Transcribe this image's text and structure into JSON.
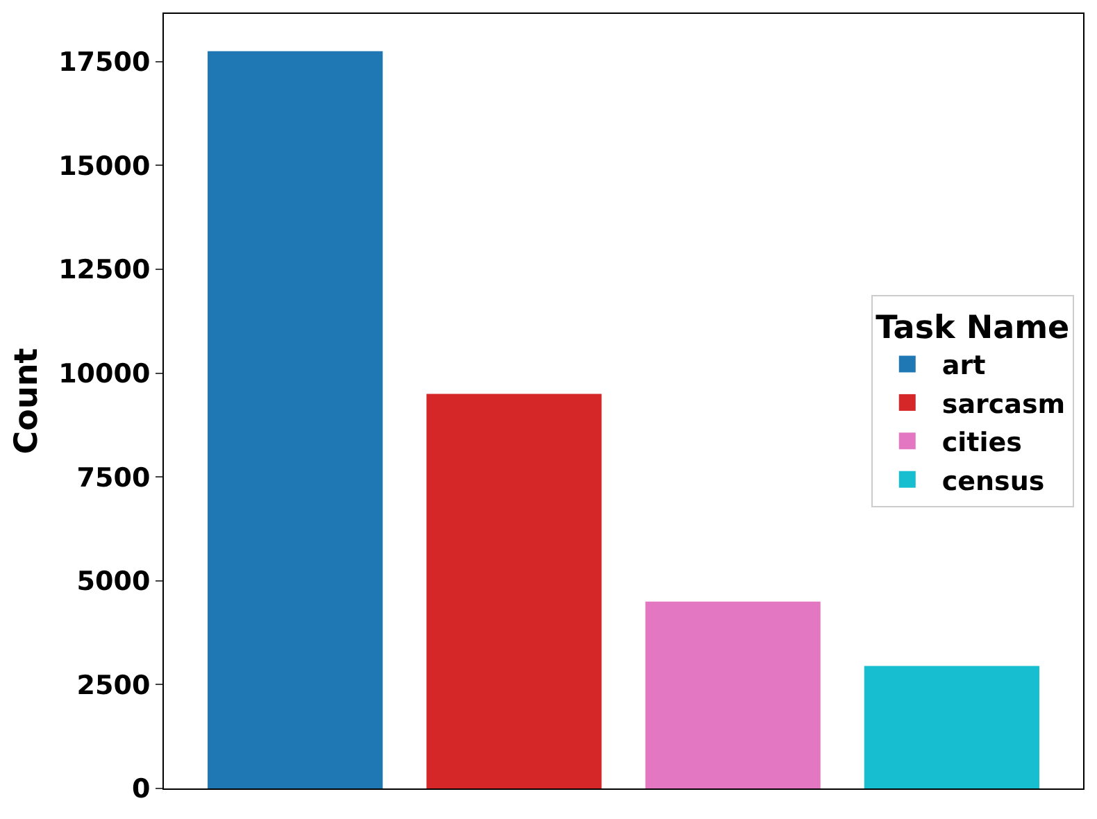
{
  "chart_data": {
    "type": "bar",
    "ylabel": "Count",
    "legend_title": "Task Name",
    "categories": [
      null,
      null,
      null,
      null
    ],
    "series": [
      {
        "name": "art",
        "color": "#1f77b4",
        "values": [
          17750,
          null,
          null,
          null
        ]
      },
      {
        "name": "sarcasm",
        "color": "#d62728",
        "values": [
          null,
          9500,
          null,
          null
        ]
      },
      {
        "name": "cities",
        "color": "#e377c2",
        "values": [
          null,
          null,
          4500,
          null
        ]
      },
      {
        "name": "census",
        "color": "#17becf",
        "values": [
          null,
          null,
          null,
          2950
        ]
      }
    ],
    "ylim": [
      0,
      18650
    ],
    "yticks": [
      0,
      2500,
      5000,
      7500,
      10000,
      12500,
      15000,
      17500
    ],
    "legend": "right"
  }
}
